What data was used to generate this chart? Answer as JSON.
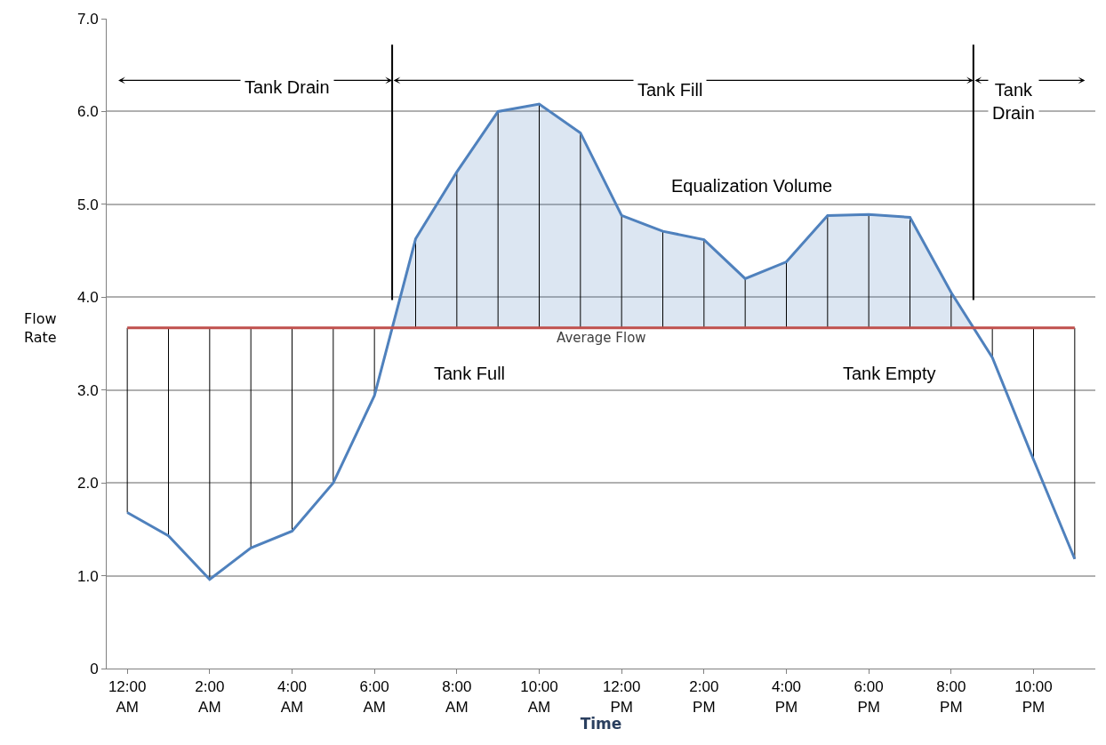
{
  "chart_data": {
    "type": "line",
    "xlabel": "Time",
    "ylabel": "Flow Rate",
    "x": [
      0,
      1,
      2,
      3,
      4,
      5,
      6,
      7,
      8,
      9,
      10,
      11,
      12,
      13,
      14,
      15,
      16,
      17,
      18,
      19,
      20,
      21,
      22,
      23
    ],
    "series": [
      {
        "color": "#4f81bd",
        "values": [
          1.68,
          1.43,
          0.96,
          1.3,
          1.48,
          2.0,
          2.94,
          4.63,
          5.35,
          6.0,
          6.08,
          5.77,
          4.88,
          4.71,
          4.62,
          4.2,
          4.38,
          4.88,
          4.89,
          4.86,
          4.05,
          3.35,
          2.25,
          1.18
        ],
        "errors": [
          [
            1.68,
            3.67
          ],
          [
            1.43,
            3.67
          ],
          [
            0.96,
            3.67
          ],
          [
            1.3,
            3.67
          ],
          [
            1.48,
            3.67
          ],
          [
            2.0,
            3.67
          ],
          [
            2.94,
            3.67
          ],
          [
            3.67,
            4.63
          ],
          [
            3.67,
            5.35
          ],
          [
            3.67,
            6.0
          ],
          [
            3.67,
            6.08
          ],
          [
            3.67,
            5.77
          ],
          [
            3.67,
            4.88
          ],
          [
            3.67,
            4.71
          ],
          [
            3.67,
            4.62
          ],
          [
            3.67,
            4.2
          ],
          [
            3.67,
            4.38
          ],
          [
            3.67,
            4.88
          ],
          [
            3.67,
            4.89
          ],
          [
            3.67,
            4.86
          ],
          [
            3.67,
            4.05
          ],
          [
            3.35,
            3.67
          ],
          [
            2.25,
            3.67
          ],
          [
            1.18,
            3.67
          ]
        ]
      }
    ],
    "xlim": [
      -0.5,
      23.5
    ],
    "xticks": [
      {
        "value": 0,
        "label": "12:00 AM"
      },
      {
        "value": 2,
        "label": "2:00 AM"
      },
      {
        "value": 4,
        "label": "4:00 AM"
      },
      {
        "value": 6,
        "label": "6:00 AM"
      },
      {
        "value": 8,
        "label": "8:00 AM"
      },
      {
        "value": 10,
        "label": "10:00 AM"
      },
      {
        "value": 12,
        "label": "12:00 PM"
      },
      {
        "value": 14,
        "label": "2:00 PM"
      },
      {
        "value": 16,
        "label": "4:00 PM"
      },
      {
        "value": 18,
        "label": "6:00 PM"
      },
      {
        "value": 20,
        "label": "8:00 PM"
      },
      {
        "value": 22,
        "label": "10:00 PM"
      }
    ],
    "ylim": [
      0,
      7
    ],
    "yticks": [
      0,
      {
        "value": 1,
        "label": "1.0"
      },
      {
        "value": 2,
        "label": "2.0"
      },
      {
        "value": 3,
        "label": "3.0"
      },
      {
        "value": 4,
        "label": "4.0"
      },
      {
        "value": 5,
        "label": "5.0"
      },
      {
        "value": 6,
        "label": "6.0"
      },
      {
        "value": 7,
        "label": "7.0"
      }
    ],
    "grid": "y",
    "marker": "none",
    "line_style": "solid",
    "ref_lines": [
      {
        "axis": "y",
        "value": 3.67,
        "label": "Average Flow",
        "color": "#c0504d"
      },
      {
        "axis": "x",
        "value": 6.43,
        "label": null,
        "color": "#000000"
      },
      {
        "axis": "x",
        "value": 20.54,
        "label": null,
        "color": "#000000"
      }
    ],
    "annotations": [
      "Tank Drain",
      "Tank Fill",
      "Tank\nDrain",
      "Equalization Volume",
      "Tank Full",
      "Tank Empty"
    ]
  }
}
